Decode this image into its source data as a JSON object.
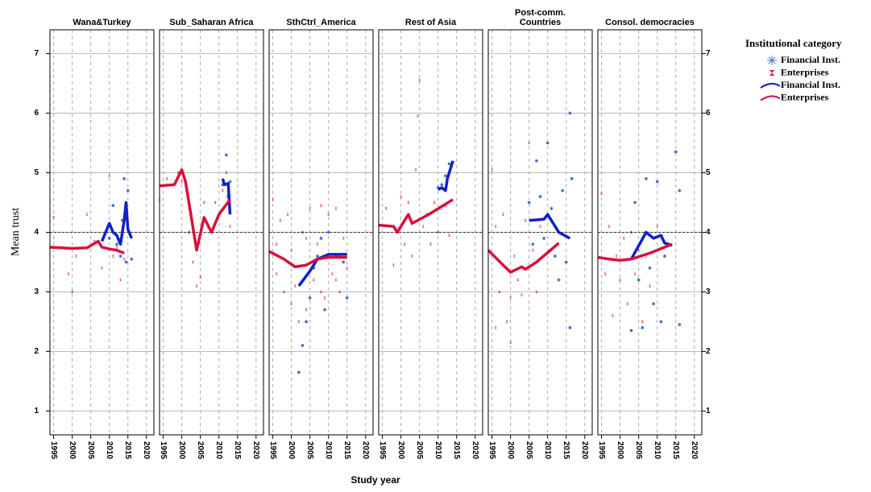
{
  "chart_data": [
    {
      "type": "line",
      "title": "Wana&Turkey",
      "xlim": [
        1994,
        2022
      ],
      "ylim": [
        0.6,
        7.4
      ],
      "xticks": [
        1995,
        2000,
        2005,
        2010,
        2015,
        2020
      ],
      "yticks": [
        1,
        2,
        3,
        4,
        5,
        6,
        7
      ],
      "refline": 4,
      "grid": true,
      "series": [
        {
          "name": "Financial Inst.",
          "type": "scatter",
          "color": "#4a6fc6",
          "x": [
            2010,
            2011,
            2012,
            2013,
            2013.5,
            2014,
            2014.5,
            2015,
            2016
          ],
          "values": [
            3.9,
            4.45,
            3.8,
            3.6,
            4.2,
            4.9,
            3.5,
            4.7,
            3.55
          ]
        },
        {
          "name": "Enterprises",
          "type": "scatter",
          "color": "#e0204a",
          "x": [
            1995,
            1999,
            2000,
            2001,
            2004,
            2006,
            2008,
            2009,
            2010,
            2011,
            2012,
            2013,
            2014
          ],
          "values": [
            4.25,
            3.3,
            3.0,
            3.6,
            4.3,
            3.85,
            3.4,
            4.0,
            4.95,
            3.6,
            3.75,
            3.2,
            3.55
          ]
        },
        {
          "name": "Financial Inst.",
          "type": "line",
          "color": "#1020c8",
          "x": [
            2008,
            2009,
            2010,
            2011,
            2012,
            2013,
            2014,
            2014.5,
            2015,
            2016
          ],
          "values": [
            3.85,
            4.0,
            4.15,
            4.0,
            3.95,
            3.8,
            4.2,
            4.5,
            4.05,
            3.9
          ]
        },
        {
          "name": "Enterprises",
          "type": "line",
          "color": "#d8103c",
          "x": [
            1994,
            2000,
            2004,
            2007,
            2008,
            2010,
            2012,
            2014
          ],
          "values": [
            3.75,
            3.73,
            3.74,
            3.85,
            3.75,
            3.72,
            3.7,
            3.65
          ]
        }
      ]
    },
    {
      "type": "line",
      "title": "Sub_Saharan Africa",
      "xlim": [
        1994,
        2022
      ],
      "ylim": [
        0.6,
        7.4
      ],
      "xticks": [
        1995,
        2000,
        2005,
        2010,
        2015,
        2020
      ],
      "yticks": [
        1,
        2,
        3,
        4,
        5,
        6,
        7
      ],
      "refline": 4,
      "grid": true,
      "series": [
        {
          "name": "Financial Inst.",
          "type": "scatter",
          "color": "#4a6fc6",
          "x": [
            2011,
            2012,
            2012.5,
            2013
          ],
          "values": [
            4.8,
            5.3,
            4.6,
            4.85
          ]
        },
        {
          "name": "Enterprises",
          "type": "scatter",
          "color": "#e0204a",
          "x": [
            1994,
            1996,
            1999,
            2000,
            2001,
            2002,
            2003,
            2004,
            2005,
            2006,
            2007,
            2009,
            2011,
            2012,
            2013
          ],
          "values": [
            4.55,
            4.9,
            5.0,
            4.85,
            4.9,
            4.0,
            3.5,
            3.1,
            3.25,
            4.5,
            4.1,
            4.5,
            4.7,
            5.0,
            4.1
          ]
        },
        {
          "name": "Financial Inst.",
          "type": "line",
          "color": "#1020c8",
          "x": [
            2011,
            2011.5,
            2012.5,
            2013
          ],
          "values": [
            4.9,
            4.8,
            4.82,
            4.3
          ]
        },
        {
          "name": "Enterprises",
          "type": "line",
          "color": "#d8103c",
          "x": [
            1994,
            1998,
            2000,
            2001,
            2004,
            2006,
            2008,
            2010,
            2013
          ],
          "values": [
            4.78,
            4.8,
            5.05,
            4.85,
            3.7,
            4.25,
            4.0,
            4.3,
            4.55
          ]
        }
      ]
    },
    {
      "type": "line",
      "title": "SthCtrl_America",
      "xlim": [
        1994,
        2022
      ],
      "ylim": [
        0.6,
        7.4
      ],
      "xticks": [
        1995,
        2000,
        2005,
        2010,
        2015,
        2020
      ],
      "yticks": [
        1,
        2,
        3,
        4,
        5,
        6,
        7
      ],
      "refline": 4,
      "grid": true,
      "series": [
        {
          "name": "Financial Inst.",
          "type": "scatter",
          "color": "#4a6fc6",
          "x": [
            2002,
            2003,
            2004,
            2005,
            2006,
            2007,
            2008,
            2009,
            2010,
            2012,
            2014,
            2015
          ],
          "values": [
            1.65,
            2.1,
            2.5,
            2.9,
            3.4,
            3.6,
            3.9,
            2.7,
            4.0,
            3.6,
            3.5,
            2.9
          ]
        },
        {
          "name": "Enterprises",
          "type": "scatter",
          "color": "#e0204a",
          "x": [
            1995,
            1996,
            1997,
            1998,
            1999,
            2000,
            2001,
            2002,
            2003,
            2004,
            2005,
            2006,
            2007,
            2008,
            2009,
            2010,
            2011,
            2012,
            2013,
            2014,
            2015,
            1996,
            2000,
            2004,
            2008,
            2012
          ],
          "values": [
            4.55,
            3.3,
            4.2,
            3.0,
            4.3,
            3.7,
            3.1,
            2.5,
            4.0,
            2.7,
            4.4,
            3.2,
            3.8,
            4.45,
            2.9,
            4.3,
            3.3,
            4.4,
            3.0,
            3.9,
            3.4,
            3.8,
            2.8,
            3.9,
            3.0,
            3.2
          ]
        },
        {
          "name": "Financial Inst.",
          "type": "line",
          "color": "#1020c8",
          "x": [
            2002,
            2005,
            2007,
            2010,
            2015
          ],
          "values": [
            3.1,
            3.35,
            3.55,
            3.63,
            3.63
          ]
        },
        {
          "name": "Enterprises",
          "type": "line",
          "color": "#d8103c",
          "x": [
            1994,
            1998,
            2001,
            2004,
            2007,
            2010,
            2015
          ],
          "values": [
            3.68,
            3.55,
            3.42,
            3.45,
            3.55,
            3.58,
            3.58
          ]
        }
      ]
    },
    {
      "type": "line",
      "title": "Rest of Asia",
      "xlim": [
        1994,
        2022
      ],
      "ylim": [
        0.6,
        7.4
      ],
      "xticks": [
        1995,
        2000,
        2005,
        2010,
        2015,
        2020
      ],
      "yticks": [
        1,
        2,
        3,
        4,
        5,
        6,
        7
      ],
      "refline": 4,
      "grid": true,
      "series": [
        {
          "name": "Financial Inst.",
          "type": "scatter",
          "color": "#4a6fc6",
          "x": [
            2010,
            2011,
            2012,
            2013
          ],
          "values": [
            4.75,
            4.8,
            4.95,
            5.15
          ]
        },
        {
          "name": "Enterprises",
          "type": "scatter",
          "color": "#e0204a",
          "x": [
            1996,
            1998,
            1999,
            2000,
            2001,
            2002,
            2003,
            2004,
            2004.5,
            2005,
            2006,
            2007,
            2008,
            2009,
            2010,
            2012,
            2013
          ],
          "values": [
            4.4,
            3.45,
            4.0,
            4.6,
            3.8,
            4.5,
            3.6,
            5.05,
            5.95,
            6.55,
            4.1,
            4.3,
            3.8,
            4.5,
            4.0,
            4.45,
            3.95
          ]
        },
        {
          "name": "Financial Inst.",
          "type": "line",
          "color": "#1020c8",
          "x": [
            2010,
            2011,
            2012,
            2012.5,
            2014
          ],
          "values": [
            4.72,
            4.75,
            4.7,
            4.9,
            5.2
          ]
        },
        {
          "name": "Enterprises",
          "type": "line",
          "color": "#d8103c",
          "x": [
            1994,
            1998,
            1999,
            2002,
            2003,
            2006,
            2008,
            2014
          ],
          "values": [
            4.12,
            4.1,
            4.0,
            4.3,
            4.15,
            4.25,
            4.32,
            4.55
          ]
        }
      ]
    },
    {
      "type": "line",
      "title": "Post-comm.\nCountries",
      "xlim": [
        1994,
        2022
      ],
      "ylim": [
        0.6,
        7.4
      ],
      "xticks": [
        1995,
        2000,
        2005,
        2010,
        2015,
        2020
      ],
      "yticks": [
        1,
        2,
        3,
        4,
        5,
        6,
        7
      ],
      "refline": 4,
      "grid": true,
      "series": [
        {
          "name": "Financial Inst.",
          "type": "scatter",
          "color": "#4a6fc6",
          "x": [
            2005,
            2006,
            2007,
            2008,
            2009,
            2010,
            2011,
            2012,
            2013,
            2014,
            2015,
            2016,
            2016,
            2016.5
          ],
          "values": [
            4.5,
            3.8,
            5.2,
            4.6,
            3.9,
            5.5,
            4.4,
            3.6,
            3.2,
            4.7,
            3.5,
            6.0,
            2.4,
            4.9
          ]
        },
        {
          "name": "Enterprises",
          "type": "scatter",
          "color": "#e0204a",
          "x": [
            1995,
            1996,
            1997,
            1998,
            1999,
            2000,
            2001,
            2002,
            2003,
            2004,
            2005,
            2006,
            2007,
            2008,
            1996,
            1999,
            2000
          ],
          "values": [
            5.05,
            4.1,
            3.0,
            4.3,
            2.5,
            2.15,
            3.6,
            3.2,
            2.95,
            4.2,
            5.5,
            3.7,
            3.0,
            4.1,
            2.4,
            3.4,
            2.9
          ]
        },
        {
          "name": "Financial Inst.",
          "type": "line",
          "color": "#1020c8",
          "x": [
            2005,
            2009,
            2010,
            2012,
            2013,
            2016
          ],
          "values": [
            4.2,
            4.22,
            4.3,
            4.1,
            4.0,
            3.9
          ]
        },
        {
          "name": "Enterprises",
          "type": "line",
          "color": "#d8103c",
          "x": [
            1994,
            1998,
            2000,
            2003,
            2004,
            2007,
            2013
          ],
          "values": [
            3.7,
            3.45,
            3.33,
            3.42,
            3.38,
            3.5,
            3.82
          ]
        }
      ]
    },
    {
      "type": "line",
      "title": "Consol. democracies",
      "xlim": [
        1994,
        2022
      ],
      "ylim": [
        0.6,
        7.4
      ],
      "xticks": [
        1995,
        2000,
        2005,
        2010,
        2015,
        2020
      ],
      "yticks": [
        1,
        2,
        3,
        4,
        5,
        6,
        7
      ],
      "refline": 4,
      "grid": true,
      "series": [
        {
          "name": "Financial Inst.",
          "type": "scatter",
          "color": "#4a6fc6",
          "x": [
            2003,
            2004,
            2005,
            2006,
            2007,
            2008,
            2009,
            2010,
            2011,
            2012,
            2015,
            2016,
            2016
          ],
          "values": [
            2.35,
            4.5,
            3.2,
            2.4,
            4.9,
            3.4,
            2.8,
            4.85,
            2.5,
            3.6,
            5.35,
            2.45,
            4.7
          ]
        },
        {
          "name": "Enterprises",
          "type": "scatter",
          "color": "#e0204a",
          "x": [
            1995,
            1996,
            1997,
            1998,
            1999,
            2000,
            2001,
            2002,
            2003,
            2004,
            2005,
            2006,
            2007,
            2008,
            2010,
            2012
          ],
          "values": [
            4.65,
            3.3,
            4.1,
            2.6,
            3.6,
            3.2,
            3.9,
            2.8,
            4.0,
            3.3,
            3.7,
            2.5,
            3.6,
            3.1,
            4.1,
            3.6
          ]
        },
        {
          "name": "Financial Inst.",
          "type": "line",
          "color": "#1020c8",
          "x": [
            2003,
            2007,
            2009,
            2011,
            2012,
            2014
          ],
          "values": [
            3.55,
            4.0,
            3.9,
            3.95,
            3.82,
            3.78
          ]
        },
        {
          "name": "Enterprises",
          "type": "line",
          "color": "#d8103c",
          "x": [
            1994,
            1997,
            2000,
            2003,
            2008,
            2014
          ],
          "values": [
            3.58,
            3.55,
            3.53,
            3.55,
            3.65,
            3.8
          ]
        }
      ]
    }
  ],
  "x_label": "Study year",
  "y_label": "Mean trust",
  "legend_title": "Institutional category"
}
